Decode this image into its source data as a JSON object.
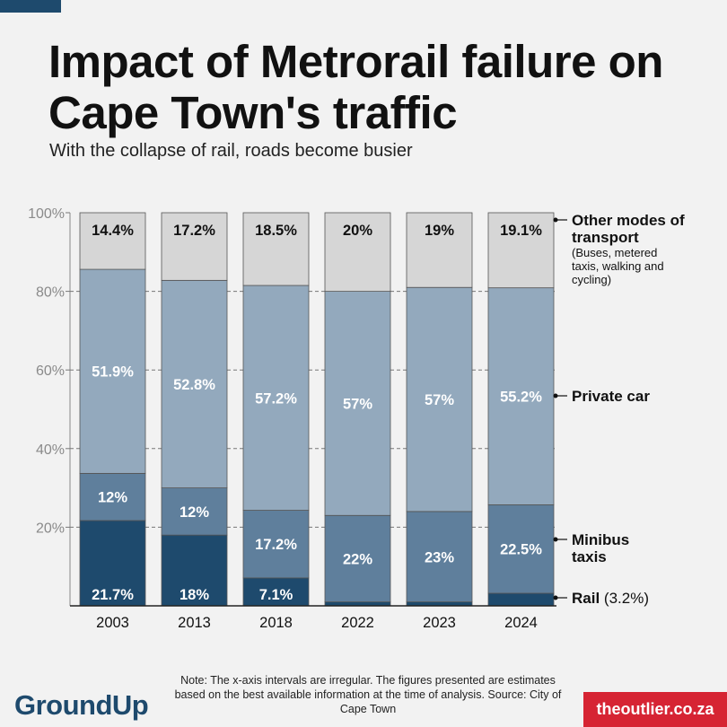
{
  "header": {
    "title": "Impact of Metrorail failure on Cape Town's traffic",
    "subtitle": "With the collapse of rail, roads become busier"
  },
  "footer": {
    "note": "Note: The x-axis intervals are irregular. The figures presented are estimates based on the best available information at the time of analysis. Source: City of Cape Town",
    "logo_left": "GroundUp",
    "logo_right": "theoutlier.co.za"
  },
  "colors": {
    "rail": "#1e4a6d",
    "minibus": "#5f7f9c",
    "car": "#93a9bd",
    "other": "#d6d6d6",
    "accent": "#1e4a6d",
    "brand_red": "#d62433"
  },
  "chart_data": {
    "type": "bar",
    "stacked": true,
    "categories": [
      "2003",
      "2013",
      "2018",
      "2022",
      "2023",
      "2024"
    ],
    "ylim": [
      0,
      100
    ],
    "yticks": [
      "100%",
      "80%",
      "60%",
      "40%",
      "20%"
    ],
    "grid": true,
    "series": [
      {
        "key": "rail",
        "name": "Rail",
        "name_extra": "(3.2%)",
        "values": [
          21.7,
          18,
          7.1,
          1,
          1,
          3.2
        ],
        "labels": [
          "21.7%",
          "18%",
          "7.1%",
          "",
          "",
          ""
        ]
      },
      {
        "key": "minibus",
        "name": "Minibus taxis",
        "values": [
          12,
          12,
          17.2,
          22,
          23,
          22.5
        ],
        "labels": [
          "12%",
          "12%",
          "17.2%",
          "22%",
          "23%",
          "22.5%"
        ]
      },
      {
        "key": "car",
        "name": "Private car",
        "values": [
          51.9,
          52.8,
          57.2,
          57,
          57,
          55.2
        ],
        "labels": [
          "51.9%",
          "52.8%",
          "57.2%",
          "57%",
          "57%",
          "55.2%"
        ]
      },
      {
        "key": "other",
        "name": "Other modes of transport",
        "subnote": "(Buses, metered taxis, walking and cycling)",
        "values": [
          14.4,
          17.2,
          18.5,
          20,
          19,
          19.1
        ],
        "labels": [
          "14.4%",
          "17.2%",
          "18.5%",
          "20%",
          "19%",
          "19.1%"
        ]
      }
    ],
    "legend_placement": "right"
  }
}
